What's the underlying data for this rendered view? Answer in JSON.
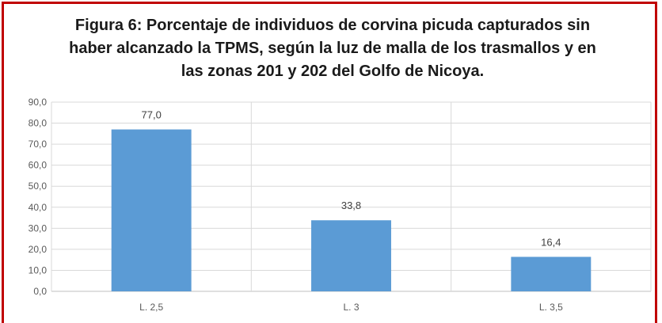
{
  "chart_data": {
    "type": "bar",
    "title": "Figura 6: Porcentaje de individuos de corvina picuda capturados sin\nhaber alcanzado la TPMS, según la luz de malla de los trasmallos y en\nlas zonas 201 y 202 del Golfo de Nicoya.",
    "categories": [
      "L. 2,5",
      "L. 3",
      "L. 3,5"
    ],
    "values": [
      77.0,
      33.8,
      16.4
    ],
    "value_labels": [
      "77,0",
      "33,8",
      "16,4"
    ],
    "xlabel": "",
    "ylabel": "",
    "ylim": [
      0,
      90
    ],
    "yticks": [
      "0,0",
      "10,0",
      "20,0",
      "30,0",
      "40,0",
      "50,0",
      "60,0",
      "70,0",
      "80,0",
      "90,0"
    ],
    "grid": true,
    "legend": "none",
    "bar_color": "#5b9bd5",
    "grid_color": "#d9d9d9",
    "frame_color": "#c00000"
  }
}
